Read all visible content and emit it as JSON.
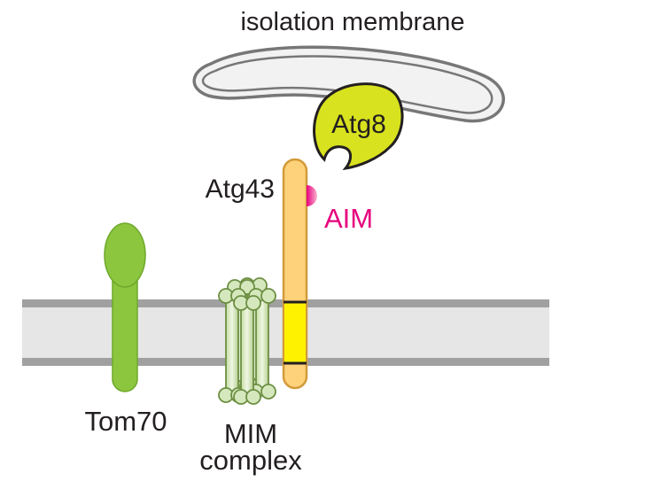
{
  "labels": {
    "isolation_membrane": "isolation membrane",
    "atg8": "Atg8",
    "atg43": "Atg43",
    "aim": "AIM",
    "tom70": "Tom70",
    "mim_line1": "MIM",
    "mim_line2": "complex"
  },
  "colors": {
    "membrane_band": "#e6e6e6",
    "membrane_edge": "#a0a0a0",
    "tom70": "#8cc63f",
    "tom70_dark": "#5d8a1e",
    "mim_fill": "#d5e8bd",
    "mim_stroke": "#6d8f43",
    "atg43": "#fdd27a",
    "atg43_stroke": "#d39b3a",
    "atg43_tm": "#fff200",
    "aim": "#e6007e",
    "atg8": "#d8e21e",
    "isolation_fill": "#f2f2f2",
    "isolation_stroke": "#777777",
    "text": "#231f20"
  }
}
